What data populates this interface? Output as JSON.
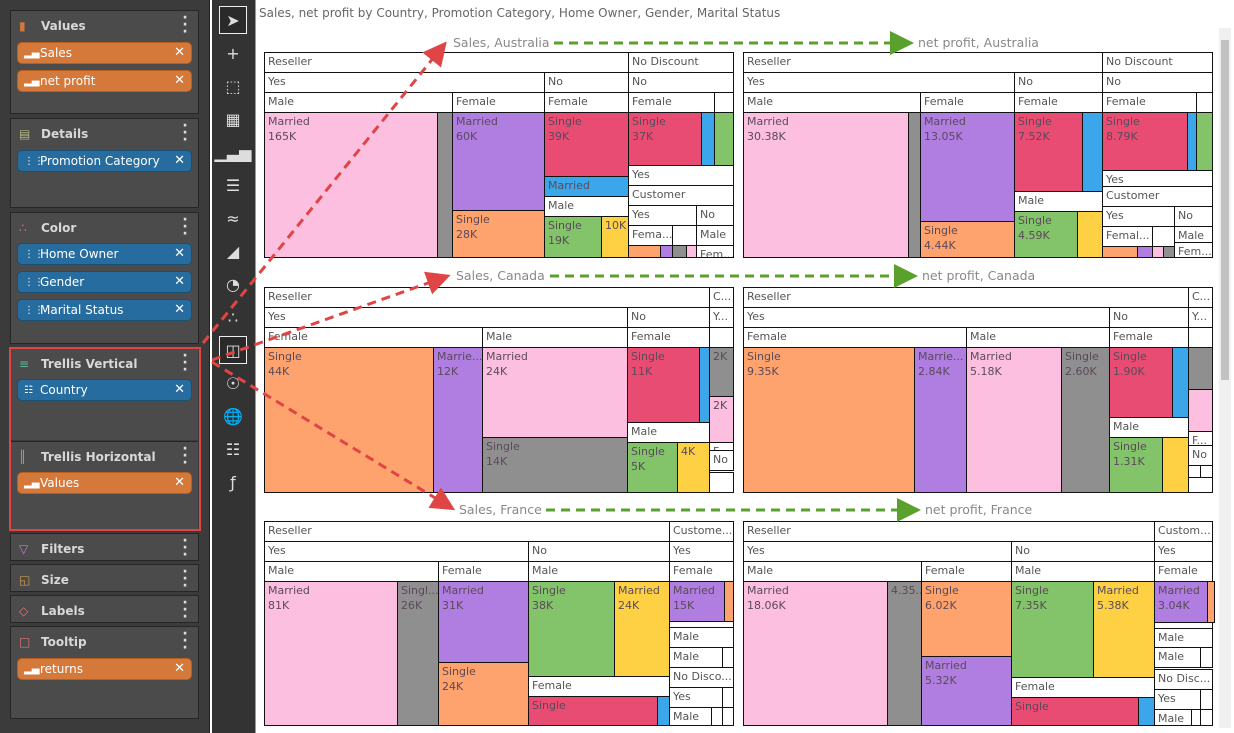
{
  "sidebar": {
    "values": {
      "title": "Values",
      "pills": [
        "Sales",
        "net profit"
      ]
    },
    "details": {
      "title": "Details",
      "pills": [
        "Promotion Category"
      ]
    },
    "color": {
      "title": "Color",
      "pills": [
        "Home Owner",
        "Gender",
        "Marital Status"
      ]
    },
    "trellis_vertical": {
      "title": "Trellis Vertical",
      "pills": [
        "Country"
      ]
    },
    "trellis_horizontal": {
      "title": "Trellis Horizontal",
      "pills": [
        "Values"
      ]
    },
    "filters": {
      "title": "Filters"
    },
    "size": {
      "title": "Size"
    },
    "labels": {
      "title": "Labels"
    },
    "tooltip": {
      "title": "Tooltip",
      "pills": [
        "returns"
      ]
    }
  },
  "toolbar": {
    "icons": [
      "pointer-icon",
      "crosshair-select-icon",
      "marquee-select-icon",
      "grid-table-icon",
      "column-chart-icon",
      "bar-chart-icon",
      "line-chart-icon",
      "area-chart-icon",
      "pie-chart-icon",
      "scatter-chart-icon",
      "treemap-icon",
      "network-icon",
      "globe-map-icon",
      "pivot-columns-icon",
      "formula-chart-icon"
    ],
    "selected": [
      "pointer-icon",
      "treemap-icon"
    ]
  },
  "caption": "Sales, net profit by Country, Promotion Category, Home Owner, Gender, Marital Status",
  "colors": {
    "pink": "#fdbfe0",
    "gray": "#8f8f8f",
    "purple": "#b07de0",
    "orange": "#fea26e",
    "red": "#e84c72",
    "blue": "#3ba7ea",
    "green": "#83c36a",
    "yellow": "#fed145"
  },
  "annotation_colors": {
    "vertical_arrows": "#e04545",
    "horizontal_arrows": "#5aa02c"
  },
  "panels": [
    {
      "title": "Sales, Australia",
      "cells": [
        {
          "t": "Reseller"
        },
        {
          "t": "No Discount"
        },
        {
          "t": "Yes"
        },
        {
          "t": "No"
        },
        {
          "t": "No"
        },
        {
          "t": "Male"
        },
        {
          "t": "Female"
        },
        {
          "t": "Female"
        },
        {
          "t": "Female"
        },
        {},
        {
          "t": "Married",
          "v": "165K",
          "c": "pink"
        },
        {
          "c": "gray"
        },
        {
          "t": "Married",
          "v": "60K",
          "c": "purple"
        },
        {
          "t": "Single",
          "v": "28K",
          "c": "orange"
        },
        {
          "t": "Single",
          "v": "39K",
          "c": "red"
        },
        {
          "t": "Married",
          "c": "blue"
        },
        {
          "t": "Male"
        },
        {
          "t": "Single",
          "v": "19K",
          "c": "green"
        },
        {
          "t": "",
          "v": "10K",
          "c": "yellow"
        },
        {
          "t": "Single",
          "v": "37K",
          "c": "red"
        },
        {
          "c": "blue"
        },
        {
          "c": "green"
        },
        {
          "t": "Yes"
        },
        {
          "t": "Customer"
        },
        {
          "t": "Yes"
        },
        {
          "t": "No"
        },
        {
          "t": "Fema..."
        },
        {},
        {
          "t": "Male"
        },
        {
          "c": "orange"
        },
        {
          "c": "purple"
        },
        {
          "c": "gray"
        },
        {
          "c": "pink"
        },
        {
          "t": "Fem..."
        }
      ]
    },
    {
      "title": "net profit, Australia",
      "cells": [
        {
          "t": "Reseller"
        },
        {
          "t": "No Discount"
        },
        {
          "t": "Yes"
        },
        {
          "t": "No"
        },
        {
          "t": "No"
        },
        {
          "t": "Male"
        },
        {
          "t": "Female"
        },
        {
          "t": "Female"
        },
        {
          "t": "Female"
        },
        {},
        {
          "t": "Married",
          "v": "30.38K",
          "c": "pink"
        },
        {
          "c": "gray"
        },
        {
          "t": "Married",
          "v": "13.05K",
          "c": "purple"
        },
        {
          "t": "Single",
          "v": "4.44K",
          "c": "orange"
        },
        {
          "t": "Single",
          "v": "7.52K",
          "c": "red"
        },
        {
          "c": "blue"
        },
        {
          "t": "Male"
        },
        {
          "t": "Single",
          "v": "4.59K",
          "c": "green"
        },
        {
          "c": "yellow"
        },
        {
          "t": "Single",
          "v": "8.79K",
          "c": "red"
        },
        {
          "c": "blue"
        },
        {
          "c": "green"
        },
        {
          "t": "Yes"
        },
        {
          "t": "Customer"
        },
        {
          "t": "Yes"
        },
        {
          "t": "No"
        },
        {
          "t": "Femal..."
        },
        {},
        {
          "t": "Male"
        },
        {
          "c": "orange"
        },
        {
          "c": "purple"
        },
        {
          "c": "pink"
        },
        {
          "c": "gray"
        },
        {
          "t": "Fem..."
        }
      ]
    },
    {
      "title": "Sales, Canada",
      "cells": [
        {
          "t": "Reseller"
        },
        {
          "t": "C..."
        },
        {
          "t": "Yes"
        },
        {
          "t": "No"
        },
        {
          "t": "Y..."
        },
        {
          "t": "Female"
        },
        {
          "t": "Male"
        },
        {
          "t": "Female"
        },
        {},
        {
          "t": "Single",
          "v": "44K",
          "c": "orange"
        },
        {
          "t": "Marrie...",
          "v": "12K",
          "c": "purple"
        },
        {
          "t": "Married",
          "v": "24K",
          "c": "pink"
        },
        {
          "t": "Single",
          "v": "14K",
          "c": "gray"
        },
        {
          "t": "Single",
          "v": "11K",
          "c": "red"
        },
        {
          "c": "blue"
        },
        {
          "t": "Male"
        },
        {
          "t": "Single",
          "v": "5K",
          "c": "green"
        },
        {
          "t": "",
          "v": "4K",
          "c": "yellow"
        },
        {
          "t": "",
          "v": "2K",
          "c": "gray"
        },
        {
          "t": "",
          "v": "2K",
          "c": "pink"
        },
        {
          "t": "F"
        },
        {
          "t": "No"
        },
        {}
      ]
    },
    {
      "title": "net profit, Canada",
      "cells": [
        {
          "t": "Reseller"
        },
        {
          "t": "C..."
        },
        {
          "t": "Yes"
        },
        {
          "t": "No"
        },
        {
          "t": "Y..."
        },
        {
          "t": "Female"
        },
        {
          "t": "Male"
        },
        {
          "t": "Female"
        },
        {},
        {
          "t": "Single",
          "v": "9.35K",
          "c": "orange"
        },
        {
          "t": "Marrie...",
          "v": "2.84K",
          "c": "purple"
        },
        {
          "t": "Married",
          "v": "5.18K",
          "c": "pink"
        },
        {
          "t": "Single",
          "v": "2.60K",
          "c": "gray"
        },
        {
          "t": "Single",
          "v": "1.90K",
          "c": "red"
        },
        {
          "c": "blue"
        },
        {
          "t": "Male"
        },
        {
          "t": "Single",
          "v": "1.31K",
          "c": "green"
        },
        {
          "c": "yellow"
        },
        {
          "c": "gray"
        },
        {
          "c": "pink"
        },
        {
          "t": "F..."
        },
        {
          "t": "No"
        },
        {},
        {},
        {}
      ]
    },
    {
      "title": "Sales, France",
      "cells": [
        {
          "t": "Reseller"
        },
        {
          "t": "Custome..."
        },
        {
          "t": "Yes"
        },
        {
          "t": "No"
        },
        {
          "t": "Yes"
        },
        {
          "t": "Male"
        },
        {
          "t": "Female"
        },
        {
          "t": "Male"
        },
        {
          "t": "Female"
        },
        {
          "t": "Married",
          "v": "81K",
          "c": "pink"
        },
        {
          "t": "Singl...",
          "v": "26K",
          "c": "gray"
        },
        {
          "t": "Married",
          "v": "31K",
          "c": "purple"
        },
        {
          "t": "Single",
          "v": "24K",
          "c": "orange"
        },
        {
          "t": "Single",
          "v": "38K",
          "c": "green"
        },
        {
          "t": "Married",
          "v": "24K",
          "c": "yellow"
        },
        {
          "t": "Female"
        },
        {
          "t": "Single",
          "c": "red"
        },
        {
          "c": "blue"
        },
        {
          "t": "Married",
          "v": "15K",
          "c": "purple"
        },
        {
          "c": "orange"
        },
        {},
        {
          "t": "Male"
        },
        {
          "t": "Male"
        },
        {},
        {
          "t": "No Disco..."
        },
        {
          "t": "Yes"
        },
        {},
        {
          "t": "Male"
        },
        {},
        {}
      ]
    },
    {
      "title": "net profit, France",
      "cells": [
        {
          "t": "Reseller"
        },
        {
          "t": "Custom..."
        },
        {
          "t": "Yes"
        },
        {
          "t": "No"
        },
        {
          "t": "Yes"
        },
        {
          "t": "Male"
        },
        {
          "t": "Female"
        },
        {
          "t": "Male"
        },
        {
          "t": "Female"
        },
        {
          "t": "Married",
          "v": "18.06K",
          "c": "pink"
        },
        {
          "t": "",
          "v": "4.35...",
          "c": "gray"
        },
        {
          "t": "Single",
          "v": "6.02K",
          "c": "orange"
        },
        {
          "t": "Married",
          "v": "5.32K",
          "c": "purple"
        },
        {
          "t": "Single",
          "v": "7.35K",
          "c": "green"
        },
        {
          "t": "Married",
          "v": "5.38K",
          "c": "yellow"
        },
        {
          "t": "Female"
        },
        {
          "t": "Single",
          "c": "red"
        },
        {
          "c": "blue"
        },
        {
          "t": "Married",
          "v": "3.04K",
          "c": "purple"
        },
        {
          "c": "orange"
        },
        {},
        {
          "t": "Male"
        },
        {
          "t": "Male"
        },
        {},
        {
          "t": "No Disc..."
        },
        {
          "t": "Yes"
        },
        {},
        {
          "t": "Male"
        },
        {},
        {}
      ]
    }
  ]
}
